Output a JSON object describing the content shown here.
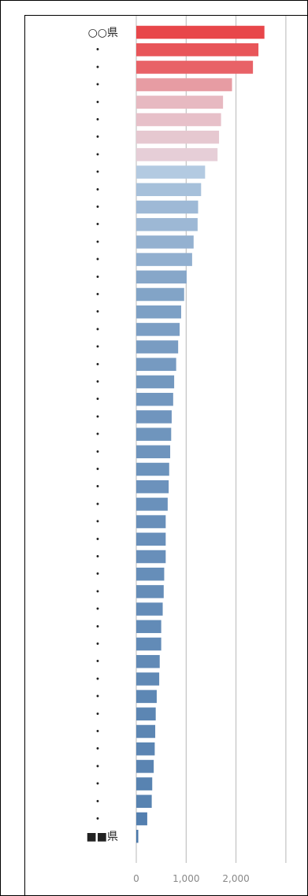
{
  "chart_data": {
    "type": "bar",
    "orientation": "horizontal",
    "categories": [
      "○○県",
      "・",
      "・",
      "・",
      "・",
      "・",
      "・",
      "・",
      "・",
      "・",
      "・",
      "・",
      "・",
      "・",
      "・",
      "・",
      "・",
      "・",
      "・",
      "・",
      "・",
      "・",
      "・",
      "・",
      "・",
      "・",
      "・",
      "・",
      "・",
      "・",
      "・",
      "・",
      "・",
      "・",
      "・",
      "・",
      "・",
      "・",
      "・",
      "・",
      "・",
      "・",
      "・",
      "・",
      "・",
      "・",
      "■■県"
    ],
    "values": [
      2570,
      2450,
      2340,
      1920,
      1740,
      1700,
      1660,
      1630,
      1380,
      1300,
      1240,
      1230,
      1150,
      1120,
      1010,
      960,
      900,
      870,
      840,
      800,
      760,
      740,
      710,
      700,
      680,
      660,
      650,
      630,
      590,
      590,
      590,
      560,
      550,
      530,
      500,
      500,
      470,
      460,
      410,
      390,
      380,
      370,
      350,
      320,
      310,
      220,
      40
    ],
    "xlim": [
      0,
      3000
    ],
    "xticks": [
      0,
      1000,
      2000
    ],
    "xtick_labels": [
      "0",
      "1,000",
      "2,000"
    ],
    "grid": true,
    "colors": {
      "high": "#e8464a",
      "mid": "#e6f1fb",
      "low": "#4a78aa",
      "grid": "#b8b8b8",
      "text": "#222222",
      "tick_text": "#888888"
    }
  }
}
